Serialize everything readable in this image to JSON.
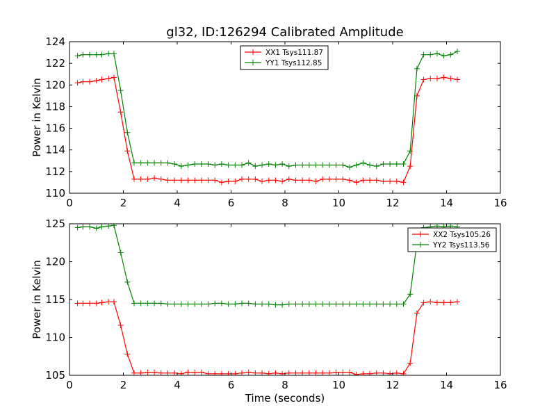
{
  "chart_data": [
    {
      "type": "line",
      "title": "gl32, ID:126294 Calibrated Amplitude",
      "xlabel": "",
      "ylabel": "Power in Kelvin",
      "xlim": [
        0,
        16
      ],
      "ylim": [
        110,
        124
      ],
      "xticks": [
        0,
        2,
        4,
        6,
        8,
        10,
        12,
        14,
        16
      ],
      "yticks": [
        110,
        112,
        114,
        116,
        118,
        120,
        122,
        124
      ],
      "legend_position": "top-center",
      "x": [
        0.3,
        0.5,
        0.75,
        1.0,
        1.2,
        1.45,
        1.65,
        1.9,
        2.15,
        2.4,
        2.65,
        2.9,
        3.15,
        3.4,
        3.65,
        3.9,
        4.15,
        4.4,
        4.65,
        4.9,
        5.15,
        5.4,
        5.65,
        5.9,
        6.15,
        6.4,
        6.65,
        6.9,
        7.15,
        7.4,
        7.65,
        7.9,
        8.15,
        8.4,
        8.65,
        8.9,
        9.15,
        9.4,
        9.65,
        9.9,
        10.15,
        10.4,
        10.65,
        10.9,
        11.15,
        11.4,
        11.65,
        11.9,
        12.15,
        12.4,
        12.65,
        12.9,
        13.15,
        13.4,
        13.65,
        13.9,
        14.15,
        14.4
      ],
      "series": [
        {
          "name": "XX1 Tsys111.87",
          "color": "#ff0000",
          "values": [
            120.2,
            120.3,
            120.3,
            120.4,
            120.5,
            120.6,
            120.7,
            117.5,
            113.9,
            111.3,
            111.3,
            111.3,
            111.4,
            111.3,
            111.2,
            111.2,
            111.2,
            111.2,
            111.2,
            111.2,
            111.2,
            111.2,
            111.0,
            111.1,
            111.1,
            111.3,
            111.3,
            111.3,
            111.1,
            111.2,
            111.2,
            111.1,
            111.3,
            111.2,
            111.2,
            111.2,
            111.1,
            111.3,
            111.3,
            111.3,
            111.3,
            111.2,
            111.0,
            111.2,
            111.2,
            111.2,
            111.1,
            111.1,
            111.1,
            111.0,
            112.5,
            119.0,
            120.5,
            120.6,
            120.6,
            120.7,
            120.6,
            120.5
          ]
        },
        {
          "name": "YY1 Tsys112.85",
          "color": "#008000",
          "values": [
            122.7,
            122.8,
            122.8,
            122.8,
            122.8,
            122.9,
            122.9,
            119.5,
            115.6,
            112.8,
            112.8,
            112.8,
            112.8,
            112.8,
            112.8,
            112.7,
            112.5,
            112.6,
            112.7,
            112.7,
            112.7,
            112.6,
            112.7,
            112.6,
            112.6,
            112.6,
            112.8,
            112.5,
            112.6,
            112.7,
            112.6,
            112.7,
            112.5,
            112.6,
            112.6,
            112.6,
            112.6,
            112.6,
            112.6,
            112.6,
            112.6,
            112.4,
            112.6,
            112.8,
            112.6,
            112.5,
            112.7,
            112.7,
            112.7,
            112.7,
            113.9,
            121.5,
            122.8,
            122.8,
            122.9,
            122.7,
            122.8,
            123.1
          ]
        }
      ]
    },
    {
      "type": "line",
      "title": "",
      "xlabel": "Time (seconds)",
      "ylabel": "Power in Kelvin",
      "xlim": [
        0,
        16
      ],
      "ylim": [
        105,
        125
      ],
      "xticks": [
        0,
        2,
        4,
        6,
        8,
        10,
        12,
        14,
        16
      ],
      "yticks": [
        105,
        110,
        115,
        120,
        125
      ],
      "legend_position": "top-right",
      "x": [
        0.3,
        0.5,
        0.75,
        1.0,
        1.2,
        1.45,
        1.65,
        1.9,
        2.15,
        2.4,
        2.65,
        2.9,
        3.15,
        3.4,
        3.65,
        3.9,
        4.15,
        4.4,
        4.65,
        4.9,
        5.15,
        5.4,
        5.65,
        5.9,
        6.15,
        6.4,
        6.65,
        6.9,
        7.15,
        7.4,
        7.65,
        7.9,
        8.15,
        8.4,
        8.65,
        8.9,
        9.15,
        9.4,
        9.65,
        9.9,
        10.15,
        10.4,
        10.65,
        10.9,
        11.15,
        11.4,
        11.65,
        11.9,
        12.15,
        12.4,
        12.65,
        12.9,
        13.15,
        13.4,
        13.65,
        13.9,
        14.15,
        14.4
      ],
      "series": [
        {
          "name": "XX2 Tsys105.26",
          "color": "#ff0000",
          "values": [
            114.5,
            114.5,
            114.5,
            114.5,
            114.6,
            114.7,
            114.7,
            111.6,
            107.8,
            105.3,
            105.3,
            105.4,
            105.4,
            105.3,
            105.3,
            105.3,
            105.2,
            105.4,
            105.4,
            105.4,
            105.2,
            105.2,
            105.2,
            105.2,
            105.2,
            105.3,
            105.4,
            105.3,
            105.3,
            105.2,
            105.3,
            105.2,
            105.3,
            105.3,
            105.3,
            105.3,
            105.3,
            105.3,
            105.3,
            105.4,
            105.4,
            105.4,
            105.1,
            105.2,
            105.2,
            105.3,
            105.3,
            105.2,
            105.3,
            105.2,
            106.6,
            113.2,
            114.6,
            114.7,
            114.6,
            114.6,
            114.6,
            114.7
          ]
        },
        {
          "name": "YY2 Tsys113.56",
          "color": "#008000",
          "values": [
            124.5,
            124.6,
            124.6,
            124.4,
            124.6,
            124.7,
            124.8,
            121.2,
            117.3,
            114.5,
            114.5,
            114.5,
            114.5,
            114.5,
            114.4,
            114.4,
            114.4,
            114.4,
            114.4,
            114.4,
            114.4,
            114.5,
            114.5,
            114.4,
            114.4,
            114.5,
            114.5,
            114.4,
            114.4,
            114.4,
            114.3,
            114.3,
            114.4,
            114.4,
            114.4,
            114.4,
            114.4,
            114.4,
            114.4,
            114.4,
            114.4,
            114.4,
            114.4,
            114.4,
            114.4,
            114.4,
            114.4,
            114.4,
            114.4,
            114.4,
            115.7,
            122.5,
            124.5,
            124.6,
            124.7,
            124.6,
            124.7,
            124.6
          ]
        }
      ]
    }
  ]
}
